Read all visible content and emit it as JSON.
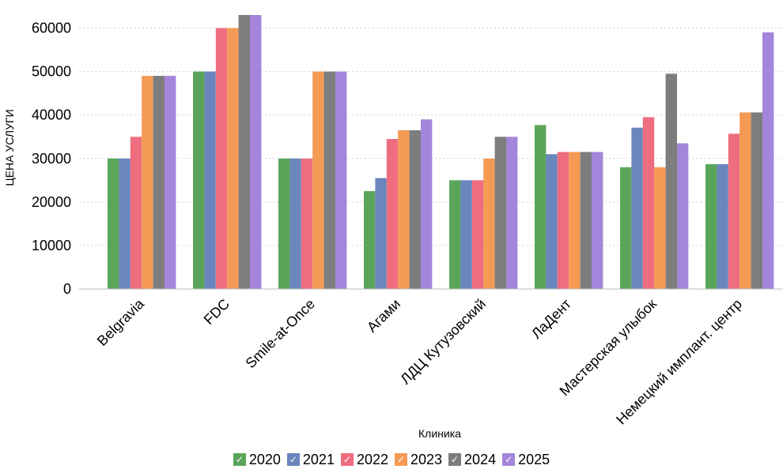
{
  "chart_data": {
    "type": "bar",
    "title": "",
    "xlabel": "Клиника",
    "ylabel": "ЦЕНА УСЛУГИ",
    "ylim": [
      0,
      65000
    ],
    "yticks": [
      0,
      10000,
      20000,
      30000,
      40000,
      50000,
      60000
    ],
    "grid": true,
    "legend_position": "bottom",
    "categories": [
      "Belgravia",
      "FDC",
      "Smile-at-Once",
      "Агами",
      "ЛДЦ Кутузовский",
      "ЛаДент",
      "Мастерская улыбок",
      "Немецкий имплант. центр"
    ],
    "series": [
      {
        "name": "2020",
        "color": "#5aa55a",
        "values": [
          30000,
          50000,
          30000,
          22500,
          25000,
          37700,
          28000,
          28700
        ]
      },
      {
        "name": "2021",
        "color": "#6a86bd",
        "values": [
          30000,
          50000,
          30000,
          25500,
          25000,
          31000,
          37100,
          28700
        ]
      },
      {
        "name": "2022",
        "color": "#ee6d7e",
        "values": [
          35000,
          60000,
          30000,
          34500,
          25000,
          31500,
          39500,
          35700
        ]
      },
      {
        "name": "2023",
        "color": "#f49a55",
        "values": [
          49000,
          60000,
          50000,
          36500,
          30000,
          31500,
          28000,
          40600
        ]
      },
      {
        "name": "2024",
        "color": "#7d7d7d",
        "values": [
          49000,
          63000,
          50000,
          36500,
          35000,
          31500,
          49500,
          40600
        ]
      },
      {
        "name": "2025",
        "color": "#a585db",
        "values": [
          49000,
          63000,
          50000,
          39000,
          35000,
          31500,
          33500,
          59000
        ]
      }
    ]
  },
  "legend": {
    "check_glyph": "✓",
    "items": [
      {
        "label": "2020",
        "color": "#5aa55a"
      },
      {
        "label": "2021",
        "color": "#6a86bd"
      },
      {
        "label": "2022",
        "color": "#ee6d7e"
      },
      {
        "label": "2023",
        "color": "#f49a55"
      },
      {
        "label": "2024",
        "color": "#7d7d7d"
      },
      {
        "label": "2025",
        "color": "#a585db"
      }
    ]
  }
}
